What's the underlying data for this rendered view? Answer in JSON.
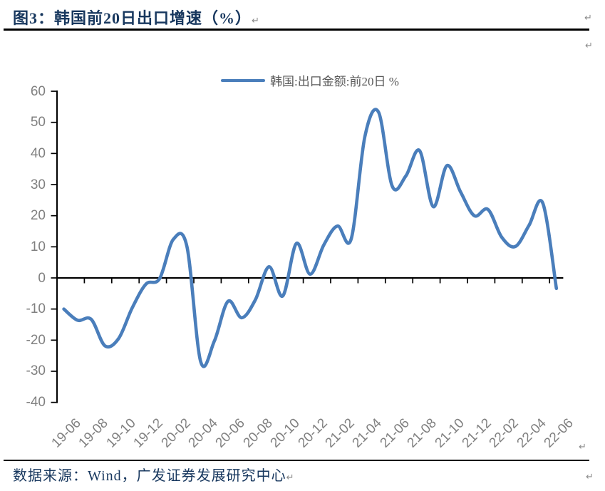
{
  "header": {
    "title": "图3：韩国前20日出口增速（%）"
  },
  "legend": {
    "label": "韩国:出口金额:前20日 %"
  },
  "footer": {
    "source": "数据来源：Wind，广发证券发展研究中心"
  },
  "marks": {
    "glyph": "↵"
  },
  "colors": {
    "accent": "#4a7ebb",
    "title_text": "#17375e",
    "axis_text": "#808080",
    "legend_text": "#595959",
    "axis_line": "#000000",
    "rule": "#000000",
    "paragraph_mark": "#8a8a8a"
  },
  "chart_data": {
    "type": "line",
    "title": "韩国:出口金额:前20日 %",
    "xlabel": "",
    "ylabel": "",
    "ylim": [
      -40,
      60
    ],
    "y_tick_step": 10,
    "y_ticks": [
      60,
      50,
      40,
      30,
      20,
      10,
      0,
      -10,
      -20,
      -30,
      -40
    ],
    "grid": false,
    "smooth": true,
    "legend_position": "top-center",
    "x": [
      "19-06",
      "19-07",
      "19-08",
      "19-09",
      "19-10",
      "19-11",
      "19-12",
      "20-01",
      "20-02",
      "20-03",
      "20-04",
      "20-05",
      "20-06",
      "20-07",
      "20-08",
      "20-09",
      "20-10",
      "20-11",
      "20-12",
      "21-01",
      "21-02",
      "21-03",
      "21-04",
      "21-05",
      "21-06",
      "21-07",
      "21-08",
      "21-09",
      "21-10",
      "21-11",
      "21-12",
      "22-01",
      "22-02",
      "22-03",
      "22-04",
      "22-05",
      "22-06"
    ],
    "series": [
      {
        "name": "韩国:出口金额:前20日 %",
        "values": [
          -10.0,
          -13.6,
          -13.3,
          -21.8,
          -19.5,
          -9.6,
          -2.0,
          -0.2,
          12.4,
          10.0,
          -26.9,
          -20.3,
          -7.5,
          -12.8,
          -7.0,
          3.6,
          -5.8,
          11.1,
          1.2,
          10.6,
          16.7,
          12.5,
          45.4,
          53.3,
          29.5,
          32.8,
          40.9,
          22.9,
          36.1,
          27.6,
          20.0,
          22.0,
          13.1,
          10.1,
          16.9,
          24.1,
          -3.4
        ]
      }
    ],
    "x_tick_labels": [
      "19-06",
      "19-08",
      "19-10",
      "19-12",
      "20-02",
      "20-04",
      "20-06",
      "20-08",
      "20-10",
      "20-12",
      "21-02",
      "21-04",
      "21-06",
      "21-08",
      "21-10",
      "21-12",
      "22-02",
      "22-04",
      "22-06"
    ],
    "x_tick_interval": 2
  }
}
